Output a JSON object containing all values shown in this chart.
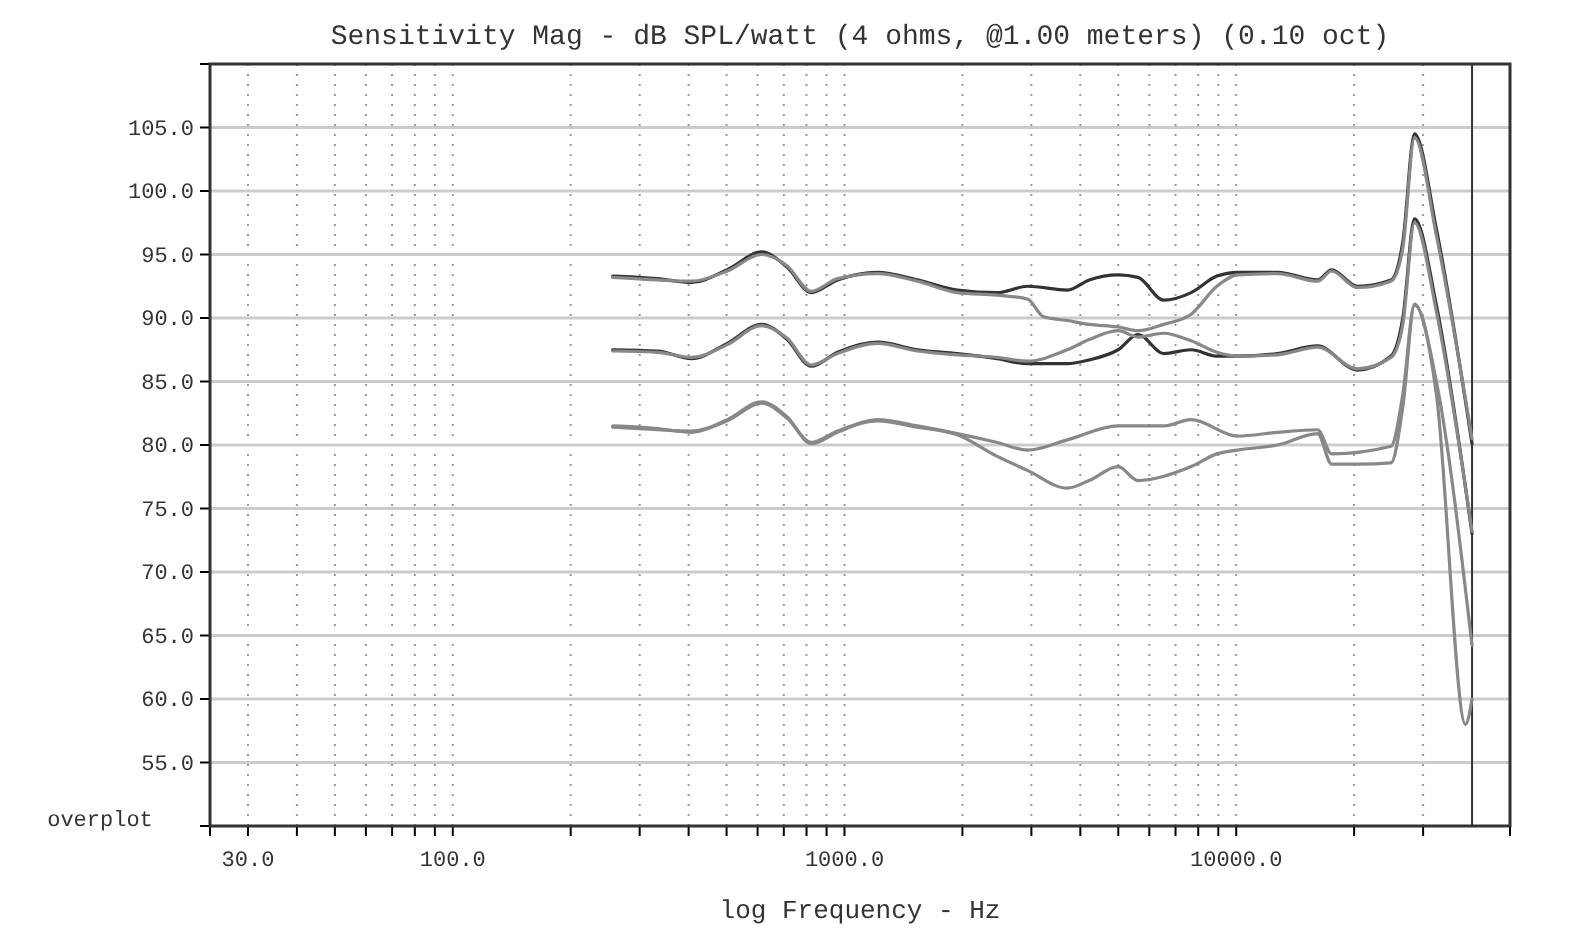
{
  "chart_data": {
    "type": "line",
    "title": "Sensitivity Mag - dB SPL/watt (4 ohms, @1.00 meters) (0.10 oct)",
    "xlabel": "log Frequency - Hz",
    "annotations": [
      "overplot"
    ],
    "log": "x",
    "grid": true,
    "marker": "none",
    "line_style": "solid",
    "xlim": [
      24,
      50000
    ],
    "ylim": [
      50,
      110
    ],
    "xticks": [
      {
        "value": 30,
        "label": "30.0"
      },
      {
        "value": 40,
        "label": null
      },
      {
        "value": 50,
        "label": null
      },
      {
        "value": 60,
        "label": null
      },
      {
        "value": 70,
        "label": null
      },
      {
        "value": 80,
        "label": null
      },
      {
        "value": 90,
        "label": null
      },
      {
        "value": 100,
        "label": "100.0"
      },
      {
        "value": 200,
        "label": null
      },
      {
        "value": 300,
        "label": null
      },
      {
        "value": 400,
        "label": null
      },
      {
        "value": 500,
        "label": null
      },
      {
        "value": 600,
        "label": null
      },
      {
        "value": 700,
        "label": null
      },
      {
        "value": 800,
        "label": null
      },
      {
        "value": 900,
        "label": null
      },
      {
        "value": 1000,
        "label": "1000.0"
      },
      {
        "value": 2000,
        "label": null
      },
      {
        "value": 3000,
        "label": null
      },
      {
        "value": 4000,
        "label": null
      },
      {
        "value": 5000,
        "label": null
      },
      {
        "value": 6000,
        "label": null
      },
      {
        "value": 7000,
        "label": null
      },
      {
        "value": 8000,
        "label": null
      },
      {
        "value": 9000,
        "label": null
      },
      {
        "value": 10000,
        "label": "10000.0"
      },
      {
        "value": 20000,
        "label": null
      },
      {
        "value": 30000,
        "label": null
      }
    ],
    "yticks": [
      {
        "value": 55,
        "label": "55.0"
      },
      {
        "value": 60,
        "label": "60.0"
      },
      {
        "value": 65,
        "label": "65.0"
      },
      {
        "value": 70,
        "label": "70.0"
      },
      {
        "value": 75,
        "label": "75.0"
      },
      {
        "value": 80,
        "label": "80.0"
      },
      {
        "value": 85,
        "label": "85.0"
      },
      {
        "value": 90,
        "label": "90.0"
      },
      {
        "value": 95,
        "label": "95.0"
      },
      {
        "value": 100,
        "label": "100.0"
      },
      {
        "value": 105,
        "label": "105.0"
      }
    ],
    "ref_lines": [
      {
        "axis": "x",
        "value": 40000,
        "label": null,
        "color": "#333333",
        "line_style": "solid"
      }
    ],
    "series": [
      {
        "color": "#333333",
        "x": [
          256,
          333,
          407,
          502,
          614,
          714,
          822,
          960,
          1213,
          1535,
          1941,
          2455,
          2932,
          3705,
          4214,
          4994,
          5616,
          6530,
          7674,
          8926,
          10080,
          12750,
          16140,
          17520,
          20370,
          24850,
          26630,
          28530,
          32440,
          40000
        ],
        "values": [
          93.3,
          93.1,
          92.8,
          93.8,
          95.2,
          94.0,
          92.0,
          93.0,
          93.6,
          93.0,
          92.2,
          92.0,
          92.5,
          92.2,
          93.0,
          93.4,
          93.2,
          91.4,
          92.0,
          93.3,
          93.6,
          93.6,
          93.0,
          93.8,
          92.5,
          93.0,
          96.0,
          104.5,
          97.0,
          80.1
        ]
      },
      {
        "color": "#888888",
        "x": [
          256,
          333,
          407,
          502,
          614,
          714,
          822,
          960,
          1213,
          1535,
          1941,
          2455,
          2932,
          3222,
          3705,
          4214,
          4994,
          5616,
          6530,
          7674,
          8926,
          10080,
          12750,
          16140,
          17520,
          20370,
          24850,
          26630,
          28530,
          32440,
          40000
        ],
        "values": [
          93.2,
          93.0,
          92.9,
          93.7,
          95.0,
          94.1,
          92.1,
          93.1,
          93.5,
          92.9,
          92.0,
          91.8,
          91.5,
          90.1,
          89.8,
          89.5,
          89.3,
          89.0,
          89.5,
          90.3,
          92.5,
          93.4,
          93.5,
          92.9,
          93.7,
          92.4,
          92.9,
          95.5,
          104.2,
          96.5,
          80.5
        ]
      },
      {
        "color": "#333333",
        "x": [
          256,
          333,
          407,
          502,
          614,
          714,
          822,
          960,
          1213,
          1535,
          1941,
          2455,
          2932,
          3705,
          4214,
          4994,
          5616,
          6530,
          7674,
          8926,
          10080,
          12750,
          16140,
          20370,
          24850,
          26630,
          28530,
          32440,
          40000
        ],
        "values": [
          87.5,
          87.4,
          86.8,
          88.0,
          89.5,
          88.3,
          86.2,
          87.3,
          88.1,
          87.5,
          87.2,
          86.8,
          86.4,
          86.4,
          86.7,
          87.5,
          88.7,
          87.2,
          87.5,
          87.0,
          87.0,
          87.2,
          87.8,
          85.9,
          87.0,
          90.0,
          97.8,
          91.0,
          73.0
        ]
      },
      {
        "color": "#888888",
        "x": [
          256,
          333,
          407,
          502,
          614,
          714,
          822,
          960,
          1213,
          1535,
          1941,
          2455,
          2932,
          3705,
          4214,
          4994,
          5616,
          6530,
          7674,
          8926,
          10080,
          12750,
          16140,
          20370,
          24850,
          26630,
          28530,
          32440,
          40000
        ],
        "values": [
          87.4,
          87.3,
          86.9,
          87.9,
          89.4,
          88.4,
          86.3,
          87.2,
          88.0,
          87.4,
          87.1,
          86.9,
          86.6,
          87.5,
          88.3,
          89.0,
          88.5,
          88.8,
          88.2,
          87.3,
          87.0,
          87.1,
          87.7,
          86.0,
          86.9,
          89.5,
          97.5,
          90.5,
          73.2
        ]
      },
      {
        "color": "#888888",
        "x": [
          256,
          333,
          407,
          502,
          614,
          714,
          822,
          960,
          1213,
          1535,
          1941,
          2455,
          2932,
          3705,
          4994,
          6530,
          7674,
          10080,
          12750,
          16140,
          17520,
          24850,
          26630,
          28530,
          32440,
          40000
        ],
        "values": [
          81.5,
          81.3,
          81.0,
          82.0,
          83.4,
          82.2,
          80.1,
          81.0,
          82.0,
          81.5,
          80.9,
          80.2,
          79.6,
          80.4,
          81.5,
          81.5,
          82.0,
          80.7,
          81.0,
          81.2,
          79.3,
          79.9,
          84.0,
          91.1,
          85.0,
          64.2
        ]
      },
      {
        "color": "#888888",
        "x": [
          256,
          333,
          407,
          502,
          614,
          714,
          822,
          960,
          1213,
          1535,
          1941,
          2455,
          2932,
          3705,
          4214,
          4994,
          5616,
          7674,
          8926,
          10080,
          12750,
          16140,
          17520,
          20370,
          24850,
          26630,
          28530,
          32440,
          38500,
          40000
        ],
        "values": [
          81.4,
          81.2,
          81.1,
          81.9,
          83.3,
          82.1,
          80.2,
          81.1,
          81.9,
          81.4,
          80.8,
          79.1,
          78.0,
          76.6,
          77.2,
          78.3,
          77.2,
          78.3,
          79.3,
          79.6,
          80.0,
          80.9,
          78.5,
          78.5,
          78.6,
          83.0,
          91.0,
          84.0,
          58.0,
          60.0
        ]
      }
    ]
  }
}
